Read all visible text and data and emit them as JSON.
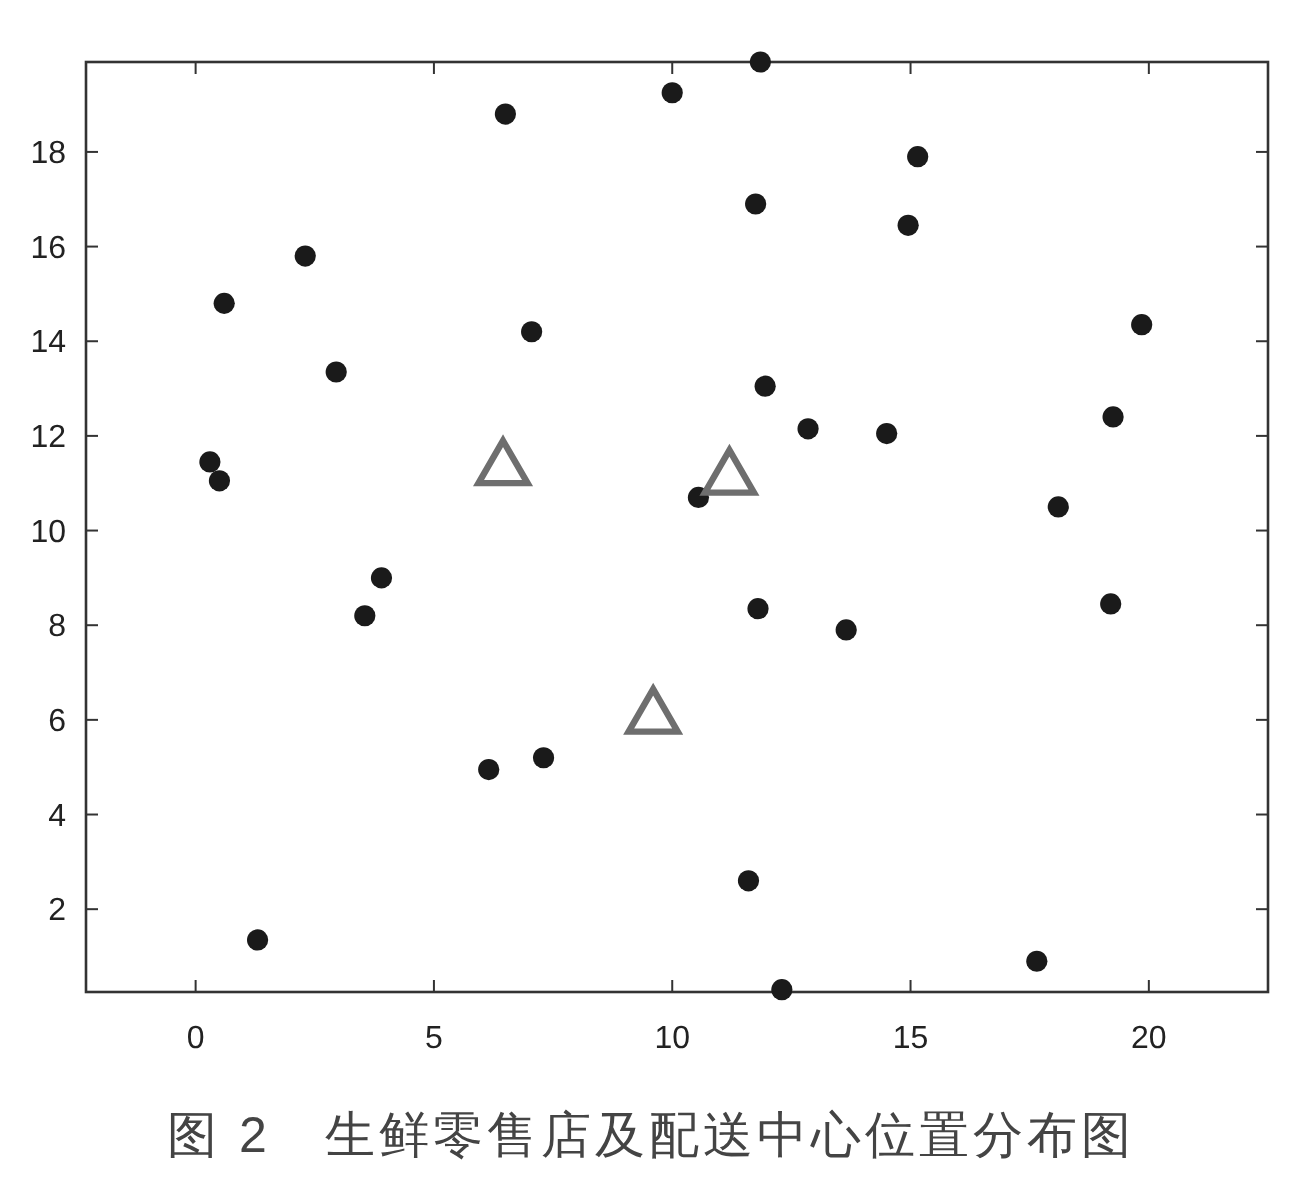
{
  "chart_data": {
    "type": "scatter",
    "title": "图 2　生鲜零售店及配送中心位置分布图",
    "xlim": [
      -2.3,
      22.5
    ],
    "ylim": [
      0.25,
      19.9
    ],
    "xticks": [
      0,
      5,
      10,
      15,
      20
    ],
    "yticks": [
      2,
      4,
      6,
      8,
      10,
      12,
      14,
      16,
      18
    ],
    "grid": false,
    "series": [
      {
        "color": "#1a1a1a",
        "marker": "circle",
        "x": [
          6.5,
          10.0,
          2.3,
          0.6,
          7.05,
          2.95,
          0.3,
          0.5,
          11.85,
          15.15,
          11.75,
          14.95,
          19.85,
          11.95,
          12.85,
          14.5,
          19.25,
          10.55,
          18.1,
          3.9,
          3.55,
          6.15,
          7.3,
          1.3,
          11.8,
          13.65,
          19.2,
          11.6,
          17.65,
          12.3
        ],
        "values": [
          18.8,
          19.25,
          15.8,
          14.8,
          14.2,
          13.35,
          11.45,
          11.05,
          19.9,
          17.9,
          16.9,
          16.45,
          14.35,
          13.05,
          12.15,
          12.05,
          12.4,
          10.7,
          10.5,
          9.0,
          8.2,
          4.95,
          5.2,
          1.35,
          8.35,
          7.9,
          8.45,
          2.6,
          0.9,
          0.3
        ]
      },
      {
        "color": "#6e6e6e",
        "marker": "triangle",
        "x": [
          6.45,
          11.2,
          9.6
        ],
        "values": [
          11.3,
          11.1,
          6.05
        ]
      }
    ]
  }
}
